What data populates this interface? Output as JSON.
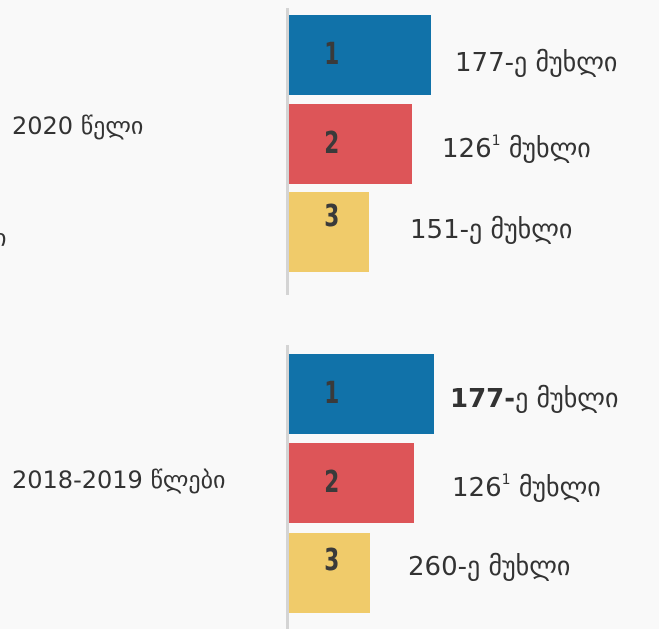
{
  "fragment": "ი",
  "groups": [
    {
      "year": "2020 წელი",
      "items": [
        {
          "rank": "1",
          "number": "177-",
          "rest": "ე მუხლი"
        },
        {
          "rank": "2",
          "number": "126",
          "sup": "1",
          "rest": " მუხლი"
        },
        {
          "rank": "3",
          "number": "151-",
          "rest": "ე მუხლი"
        }
      ]
    },
    {
      "year": "2018-2019 წლები",
      "items": [
        {
          "rank": "1",
          "number": "177-",
          "rest": "ე მუხლი"
        },
        {
          "rank": "2",
          "number": "126",
          "sup": "1",
          "rest": " მუხლი"
        },
        {
          "rank": "3",
          "number": "260-",
          "rest": "ე მუხლი"
        }
      ]
    }
  ]
}
